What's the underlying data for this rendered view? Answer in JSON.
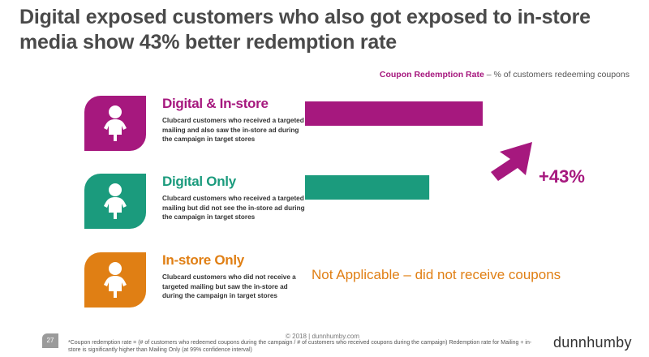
{
  "title": "Digital exposed customers who also got exposed to in-store media show 43% better redemption rate",
  "metric_note": {
    "name": "Coupon Redemption Rate",
    "description": " – % of customers redeeming coupons"
  },
  "segments": [
    {
      "name": "Digital & In-store",
      "description": "Clubcard customers who received a targeted mailing and also saw the in-store ad during the campaign in target stores",
      "color": "#a6187e",
      "icon": "baby-icon"
    },
    {
      "name": "Digital Only",
      "description": "Clubcard customers who received a targeted mailing but did not see the in-store ad during the campaign in target stores",
      "color": "#1b9b7d",
      "icon": "baby-icon"
    },
    {
      "name": "In-store Only",
      "description": "Clubcard customers who did not receive a targeted mailing but saw the in-store ad during the campaign in target stores",
      "color": "#e07f14",
      "icon": "baby-icon"
    }
  ],
  "not_applicable": "Not Applicable – did not receive coupons",
  "change_label": "+43%",
  "chart_data": {
    "type": "bar",
    "orientation": "horizontal",
    "categories": [
      "Digital & In-store",
      "Digital Only",
      "In-store Only"
    ],
    "values": [
      1.43,
      1.0,
      null
    ],
    "value_unit": "relative redemption rate (Digital Only = 1.0)",
    "colors": [
      "#a6187e",
      "#1b9b7d",
      "#e07f14"
    ],
    "annotation": "+43%"
  },
  "footer": {
    "page_number": "27",
    "footnote": "*Coupon redemption rate = (# of customers who redeemed coupons during the campaign / # of customers who received coupons during the campaign) Redemption rate for Mailing + in-store is significantly higher than Mailing Only (at 99% confidence interval)",
    "copyright": "© 2018 | dunnhumby.com",
    "brand": "dunnhumby"
  }
}
